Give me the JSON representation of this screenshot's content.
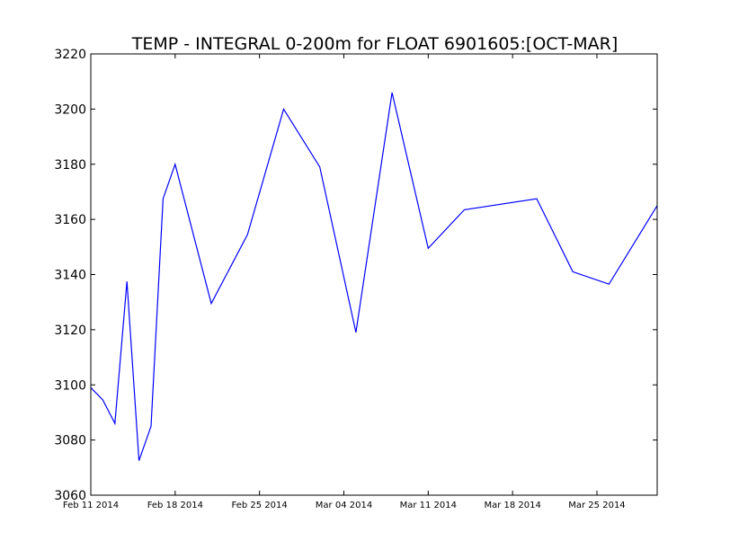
{
  "chart_data": {
    "type": "line",
    "title": "TEMP - INTEGRAL 0-200m for FLOAT 6901605:[OCT-MAR]",
    "xlabel": "",
    "ylabel": "",
    "ylim": [
      3060,
      3220
    ],
    "yticks": [
      3060,
      3080,
      3100,
      3120,
      3140,
      3160,
      3180,
      3200,
      3220
    ],
    "xlim": [
      "2014-02-11",
      "2014-03-30"
    ],
    "xticks": [
      {
        "date": "2014-02-11",
        "label": "Feb 11 2014"
      },
      {
        "date": "2014-02-18",
        "label": "Feb 18 2014"
      },
      {
        "date": "2014-02-25",
        "label": "Feb 25 2014"
      },
      {
        "date": "2014-03-04",
        "label": "Mar 04 2014"
      },
      {
        "date": "2014-03-11",
        "label": "Mar 11 2014"
      },
      {
        "date": "2014-03-18",
        "label": "Mar 18 2014"
      },
      {
        "date": "2014-03-25",
        "label": "Mar 25 2014"
      }
    ],
    "grid": false,
    "line_color": "#0000ff",
    "series": [
      {
        "x": [
          "2014-02-11",
          "2014-02-12",
          "2014-02-13",
          "2014-02-14",
          "2014-02-15",
          "2014-02-16",
          "2014-02-17",
          "2014-02-18",
          "2014-02-21",
          "2014-02-24",
          "2014-02-27",
          "2014-03-02",
          "2014-03-05",
          "2014-03-08",
          "2014-03-11",
          "2014-03-14",
          "2014-03-20",
          "2014-03-23",
          "2014-03-26",
          "2014-03-30"
        ],
        "y": [
          3099,
          3094.5,
          3086,
          3137.5,
          3072.5,
          3085,
          3167.5,
          3180,
          3129.5,
          3154.5,
          3200,
          3179,
          3119,
          3206,
          3149.5,
          3163.5,
          3167.5,
          3141,
          3136.5,
          3165
        ]
      }
    ]
  }
}
